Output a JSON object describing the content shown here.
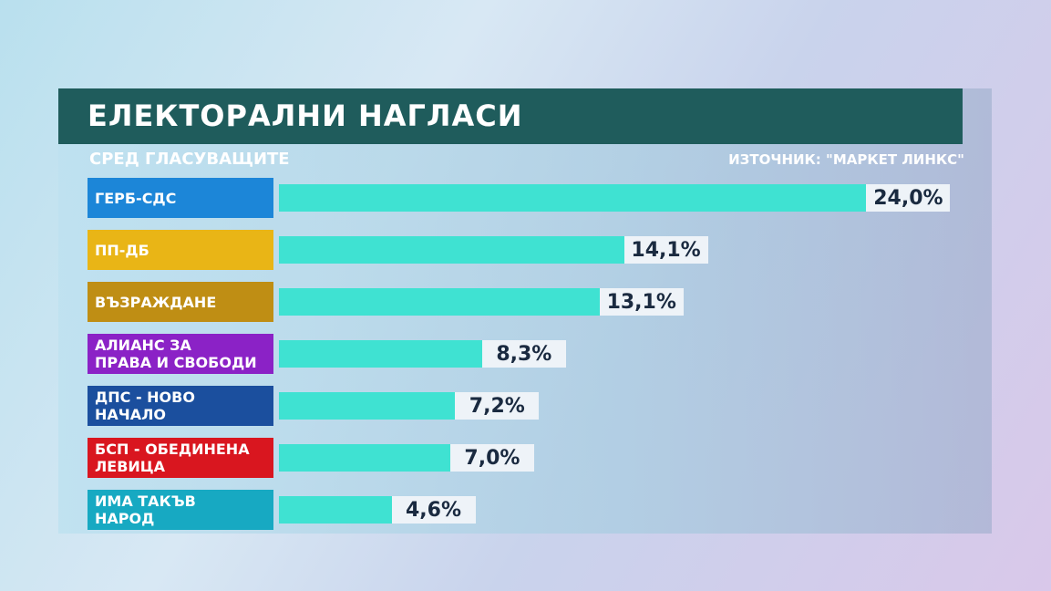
{
  "chart_data": {
    "type": "bar",
    "orientation": "horizontal",
    "title": "ЕЛЕКТОРАЛНИ НАГЛАСИ",
    "subtitle": "СРЕД ГЛАСУВАЩИТЕ",
    "source": "ИЗТОЧНИК: \"МАРКЕТ ЛИНКС\"",
    "categories": [
      "ГЕРБ-СДС",
      "ПП-ДБ",
      "ВЪЗРАЖДАНЕ",
      "АЛИАНС ЗА\nПРАВА И СВОБОДИ",
      "ДПС - НОВО\nНАЧАЛО",
      "БСП - ОБЕДИНЕНА\nЛЕВИЦА",
      "ИМА ТАКЪВ\nНАРОД"
    ],
    "category_colors": [
      "#1c86d8",
      "#e9b516",
      "#bf8e14",
      "#8b22c6",
      "#1b4f9e",
      "#d9161f",
      "#17a9c2"
    ],
    "values": [
      24.0,
      14.1,
      13.1,
      8.3,
      7.2,
      7.0,
      4.6
    ],
    "value_labels": [
      "24,0%",
      "14,1%",
      "13,1%",
      "8,3%",
      "7,2%",
      "7,0%",
      "4,6%"
    ],
    "color": "#3fe2d2"
  }
}
